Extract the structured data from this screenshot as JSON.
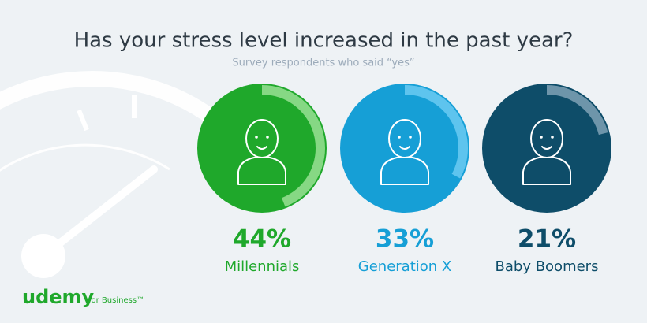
{
  "chart_data": {
    "type": "ring",
    "title": "Has your stress level increased in the past year?",
    "subtitle": "Survey respondents who said “yes”",
    "categories": [
      "Millennials",
      "Generation X",
      "Baby Boomers"
    ],
    "values": [
      44,
      33,
      21
    ],
    "value_labels": [
      "44%",
      "33%",
      "21%"
    ],
    "colors": [
      "#1fa82b",
      "#169fd6",
      "#0e4d69"
    ],
    "ring_colors": [
      "#86d884",
      "#5ec4ee",
      "#6e95aa"
    ]
  },
  "logo": {
    "name": "udemy",
    "tagline": "for Business™"
  }
}
